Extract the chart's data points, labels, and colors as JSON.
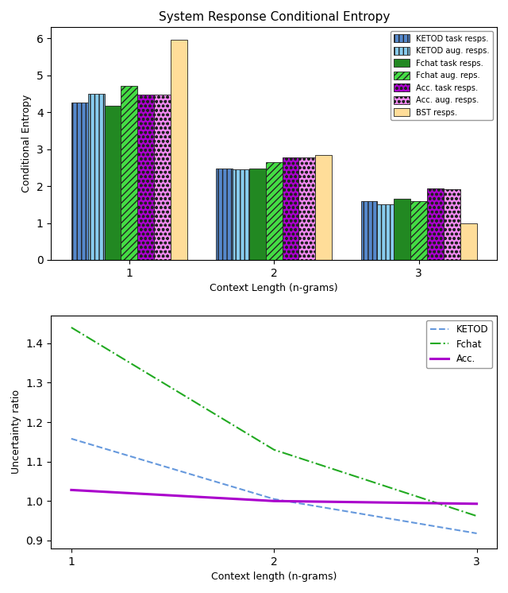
{
  "title": "System Response Conditional Entropy",
  "bar_xlabel": "Context Length (n-grams)",
  "bar_ylabel": "Conditional Entropy",
  "line_xlabel": "Context length (n-grams)",
  "line_ylabel": "Uncertainty ratio",
  "x_positions": [
    1,
    2,
    3
  ],
  "bar_groups": {
    "KETOD task resps.": {
      "values": [
        4.25,
        2.47,
        1.6
      ],
      "color": "#5588CC",
      "hatch": "|||",
      "edgecolor": "#222222"
    },
    "KETOD aug. resps.": {
      "values": [
        4.5,
        2.45,
        1.5
      ],
      "color": "#88CCEE",
      "hatch": "|||",
      "edgecolor": "#222222"
    },
    "Fchat task resps.": {
      "values": [
        4.18,
        2.47,
        1.65
      ],
      "color": "#228822",
      "hatch": "",
      "edgecolor": "#222222"
    },
    "Fchat aug. reps.": {
      "values": [
        4.72,
        2.65,
        1.6
      ],
      "color": "#44DD44",
      "hatch": "////",
      "edgecolor": "#222222"
    },
    "Acc. task resps.": {
      "values": [
        4.47,
        2.77,
        1.93
      ],
      "color": "#AA00CC",
      "hatch": "ooo",
      "edgecolor": "#222222"
    },
    "Acc. aug. resps.": {
      "values": [
        4.47,
        2.78,
        1.92
      ],
      "color": "#EE88EE",
      "hatch": "ooo",
      "edgecolor": "#222222"
    },
    "BST resps.": {
      "values": [
        5.97,
        2.85,
        0.98
      ],
      "color": "#FFDD99",
      "hatch": "",
      "edgecolor": "#222222"
    }
  },
  "line_data": {
    "KETOD": {
      "values": [
        1.158,
        1.005,
        0.918
      ],
      "color": "#6699DD",
      "linestyle": "--"
    },
    "Fchat": {
      "values": [
        1.44,
        1.13,
        0.962
      ],
      "color": "#22AA22",
      "linestyle": "-."
    },
    "Acc.": {
      "values": [
        1.028,
        1.0,
        0.993
      ],
      "color": "#AA00CC",
      "linestyle": "-"
    }
  },
  "bar_ylim": [
    0,
    6.3
  ],
  "line_ylim": [
    0.88,
    1.47
  ],
  "bar_yticks": [
    0,
    1,
    2,
    3,
    4,
    5,
    6
  ],
  "line_yticks": [
    0.9,
    1.0,
    1.1,
    1.2,
    1.3,
    1.4
  ],
  "figsize": [
    6.4,
    7.46
  ],
  "dpi": 100
}
